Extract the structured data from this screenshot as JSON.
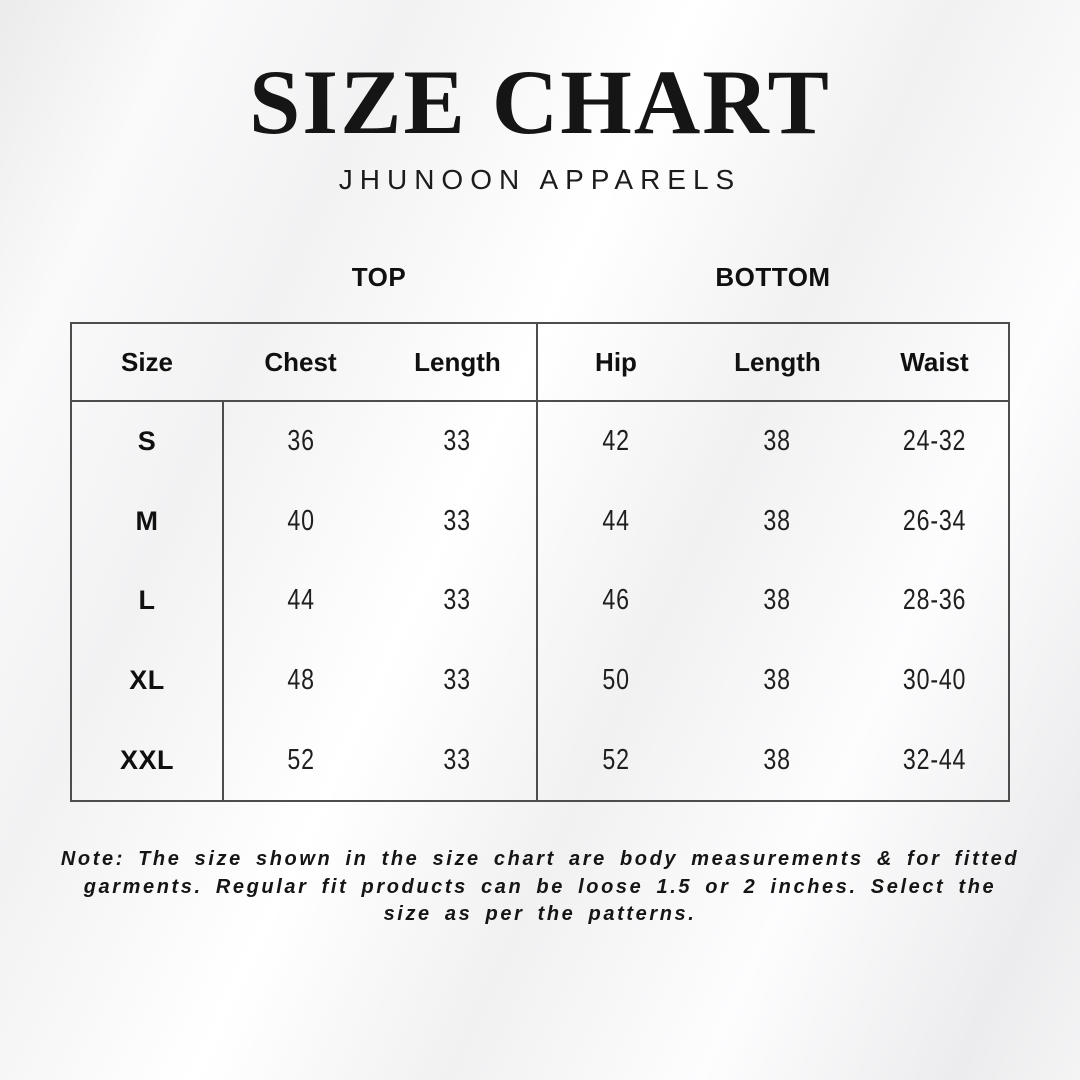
{
  "header": {
    "title": "SIZE CHART",
    "subtitle": "JHUNOON APPARELS"
  },
  "sections": {
    "top": "TOP",
    "bottom": "BOTTOM"
  },
  "table": {
    "headers": [
      "Size",
      "Chest",
      "Length",
      "Hip",
      "Length",
      "Waist"
    ],
    "rows": [
      [
        "S",
        "36",
        "33",
        "42",
        "38",
        "24-32"
      ],
      [
        "M",
        "40",
        "33",
        "44",
        "38",
        "26-34"
      ],
      [
        "L",
        "44",
        "33",
        "46",
        "38",
        "28-36"
      ],
      [
        "XL",
        "48",
        "33",
        "50",
        "38",
        "30-40"
      ],
      [
        "XXL",
        "52",
        "33",
        "52",
        "38",
        "32-44"
      ]
    ]
  },
  "note": {
    "lines": [
      "Note: The size shown in the size chart are body measurements & for fitted",
      "garments. Regular fit products can be loose 1.5 or 2 inches. Select the",
      "size as per the patterns."
    ]
  }
}
